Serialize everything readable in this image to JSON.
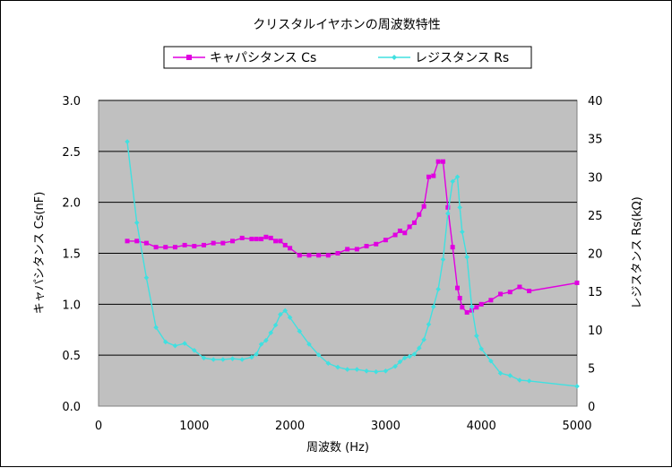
{
  "chart_data": {
    "type": "line",
    "title": "クリスタルイヤホンの周波数特性",
    "xlabel": "周波数 (Hz)",
    "ylabel_left": "キャパシタンス Cs(nF)",
    "ylabel_right": "レジスタンス Rs(kΩ)",
    "xlim": [
      0,
      5000
    ],
    "ylim_left": [
      0,
      3.0
    ],
    "ylim_right": [
      0,
      40
    ],
    "x_ticks": [
      "0",
      "1000",
      "2000",
      "3000",
      "4000",
      "5000"
    ],
    "y_ticks_left": [
      "0.0",
      "0.5",
      "1.0",
      "1.5",
      "2.0",
      "2.5",
      "3.0"
    ],
    "y_ticks_right": [
      "0",
      "5",
      "10",
      "15",
      "20",
      "25",
      "30",
      "35",
      "40"
    ],
    "legend_position": "top",
    "grid": "horizontal",
    "plot_background": "#c0c0c0",
    "series": [
      {
        "name": "キャパシタンス Cs",
        "axis": "left",
        "color": "#e000e0",
        "marker": "square",
        "points": [
          [
            300,
            1.62
          ],
          [
            400,
            1.62
          ],
          [
            500,
            1.6
          ],
          [
            600,
            1.56
          ],
          [
            700,
            1.56
          ],
          [
            800,
            1.56
          ],
          [
            900,
            1.58
          ],
          [
            1000,
            1.57
          ],
          [
            1100,
            1.58
          ],
          [
            1200,
            1.6
          ],
          [
            1300,
            1.6
          ],
          [
            1400,
            1.62
          ],
          [
            1500,
            1.65
          ],
          [
            1600,
            1.64
          ],
          [
            1650,
            1.64
          ],
          [
            1700,
            1.64
          ],
          [
            1750,
            1.66
          ],
          [
            1800,
            1.65
          ],
          [
            1850,
            1.62
          ],
          [
            1900,
            1.62
          ],
          [
            1950,
            1.58
          ],
          [
            2000,
            1.55
          ],
          [
            2100,
            1.48
          ],
          [
            2200,
            1.48
          ],
          [
            2300,
            1.48
          ],
          [
            2400,
            1.48
          ],
          [
            2500,
            1.5
          ],
          [
            2600,
            1.54
          ],
          [
            2700,
            1.54
          ],
          [
            2800,
            1.57
          ],
          [
            2900,
            1.59
          ],
          [
            3000,
            1.63
          ],
          [
            3100,
            1.68
          ],
          [
            3150,
            1.72
          ],
          [
            3200,
            1.7
          ],
          [
            3250,
            1.76
          ],
          [
            3300,
            1.8
          ],
          [
            3350,
            1.88
          ],
          [
            3400,
            1.96
          ],
          [
            3450,
            2.25
          ],
          [
            3500,
            2.26
          ],
          [
            3550,
            2.4
          ],
          [
            3600,
            2.4
          ],
          [
            3650,
            1.95
          ],
          [
            3700,
            1.56
          ],
          [
            3750,
            1.16
          ],
          [
            3775,
            1.06
          ],
          [
            3800,
            0.97
          ],
          [
            3850,
            0.92
          ],
          [
            3900,
            0.94
          ],
          [
            3950,
            0.97
          ],
          [
            4000,
            1.0
          ],
          [
            4100,
            1.04
          ],
          [
            4200,
            1.1
          ],
          [
            4300,
            1.12
          ],
          [
            4400,
            1.17
          ],
          [
            4500,
            1.13
          ],
          [
            5000,
            1.21
          ]
        ]
      },
      {
        "name": "レジスタンス Rs",
        "axis": "right",
        "color": "#40e0e0",
        "marker": "diamond",
        "points": [
          [
            300,
            34.6
          ],
          [
            400,
            24.0
          ],
          [
            500,
            16.8
          ],
          [
            600,
            10.3
          ],
          [
            700,
            8.4
          ],
          [
            800,
            7.9
          ],
          [
            900,
            8.2
          ],
          [
            1000,
            7.3
          ],
          [
            1100,
            6.3
          ],
          [
            1200,
            6.1
          ],
          [
            1300,
            6.1
          ],
          [
            1400,
            6.2
          ],
          [
            1500,
            6.1
          ],
          [
            1600,
            6.4
          ],
          [
            1650,
            6.8
          ],
          [
            1700,
            8.1
          ],
          [
            1750,
            8.6
          ],
          [
            1800,
            9.6
          ],
          [
            1850,
            10.6
          ],
          [
            1900,
            12.0
          ],
          [
            1950,
            12.5
          ],
          [
            2000,
            11.6
          ],
          [
            2100,
            9.8
          ],
          [
            2200,
            8.1
          ],
          [
            2300,
            6.7
          ],
          [
            2400,
            5.6
          ],
          [
            2500,
            5.1
          ],
          [
            2600,
            4.8
          ],
          [
            2700,
            4.8
          ],
          [
            2800,
            4.6
          ],
          [
            2900,
            4.5
          ],
          [
            3000,
            4.6
          ],
          [
            3100,
            5.2
          ],
          [
            3150,
            5.8
          ],
          [
            3200,
            6.3
          ],
          [
            3250,
            6.5
          ],
          [
            3300,
            6.8
          ],
          [
            3350,
            7.6
          ],
          [
            3400,
            8.7
          ],
          [
            3450,
            10.7
          ],
          [
            3500,
            13.0
          ],
          [
            3550,
            15.3
          ],
          [
            3600,
            19.2
          ],
          [
            3650,
            25.2
          ],
          [
            3700,
            29.4
          ],
          [
            3750,
            30.0
          ],
          [
            3775,
            26.0
          ],
          [
            3800,
            22.8
          ],
          [
            3850,
            19.5
          ],
          [
            3900,
            13.0
          ],
          [
            3950,
            9.2
          ],
          [
            4000,
            7.5
          ],
          [
            4100,
            5.9
          ],
          [
            4200,
            4.3
          ],
          [
            4300,
            4.0
          ],
          [
            4400,
            3.4
          ],
          [
            4500,
            3.3
          ],
          [
            5000,
            2.6
          ]
        ]
      }
    ]
  }
}
